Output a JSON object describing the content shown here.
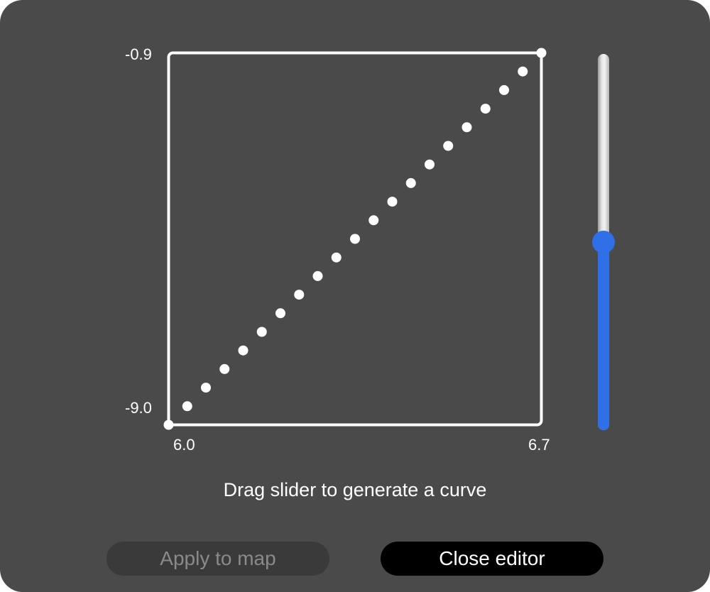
{
  "editor": {
    "y_max_label": "-0.9",
    "y_min_label": "-9.0",
    "x_min_label": "6.0",
    "x_max_label": "6.7",
    "hint": "Drag slider to generate a curve"
  },
  "slider": {
    "value": 0.5
  },
  "buttons": {
    "apply_label": "Apply to map",
    "close_label": "Close editor"
  },
  "chart_data": {
    "type": "scatter",
    "x": [
      6.0,
      6.035,
      6.07,
      6.105,
      6.14,
      6.175,
      6.21,
      6.245,
      6.28,
      6.315,
      6.35,
      6.385,
      6.42,
      6.455,
      6.49,
      6.525,
      6.56,
      6.595,
      6.63,
      6.665,
      6.7
    ],
    "y": [
      -9.0,
      -8.595,
      -8.19,
      -7.785,
      -7.38,
      -6.975,
      -6.57,
      -6.165,
      -5.76,
      -5.355,
      -4.95,
      -4.545,
      -4.14,
      -3.735,
      -3.33,
      -2.925,
      -2.52,
      -2.115,
      -1.71,
      -1.305,
      -0.9
    ],
    "xlim": [
      6.0,
      6.7
    ],
    "ylim": [
      -9.0,
      -0.9
    ],
    "colors": {
      "points": "#ffffff",
      "frame": "#ffffff",
      "accent": "#2f6fe8"
    }
  }
}
